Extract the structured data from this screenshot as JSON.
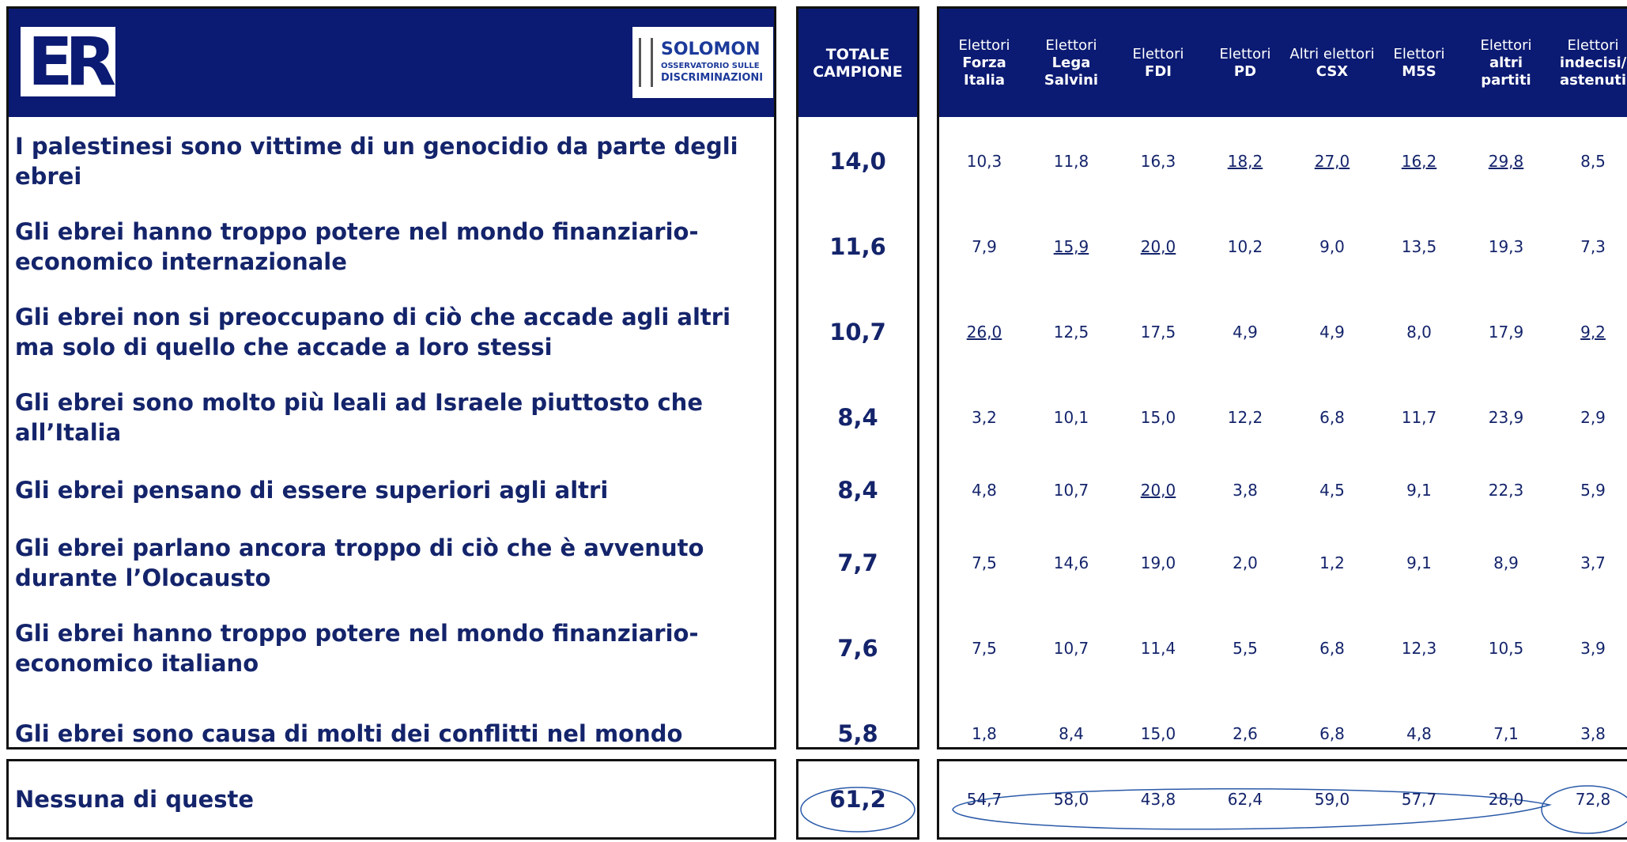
{
  "header": {
    "logo_left": "ER",
    "logo_right": {
      "name": "SOLOMON",
      "line1": "OSSERVATORIO SULLE",
      "line2": "DISCRIMINAZIONI"
    },
    "total_label": "TOTALE CAMPIONE",
    "parties": [
      {
        "line1": "Elettori",
        "bold": "Forza Italia"
      },
      {
        "line1": "Elettori",
        "bold": "Lega Salvini"
      },
      {
        "line1": "Elettori",
        "bold": "FDI"
      },
      {
        "line1": "Elettori",
        "bold": "PD"
      },
      {
        "line1": "Altri elettori",
        "bold": "CSX"
      },
      {
        "line1": "Elettori",
        "bold": "M5S"
      },
      {
        "line1": "Elettori",
        "bold": "altri partiti"
      },
      {
        "line1": "Elettori",
        "bold": "indecisi/ astenuti"
      }
    ]
  },
  "table": {
    "rows": [
      {
        "statement": "I palestinesi sono vittime di un genocidio da parte degli ebrei",
        "total": "14,0",
        "values": [
          "10,3",
          "11,8",
          "16,3",
          "18,2",
          "27,0",
          "16,2",
          "29,8",
          "8,5"
        ],
        "underlined": [
          3,
          4,
          5,
          6
        ]
      },
      {
        "statement": "Gli ebrei hanno troppo potere nel mondo finanziario-economico internazionale",
        "total": "11,6",
        "values": [
          "7,9",
          "15,9",
          "20,0",
          "10,2",
          "9,0",
          "13,5",
          "19,3",
          "7,3"
        ],
        "underlined": [
          1,
          2
        ]
      },
      {
        "statement": "Gli ebrei non si preoccupano di ciò che accade agli altri ma solo di quello che accade a loro stessi",
        "total": "10,7",
        "values": [
          "26,0",
          "12,5",
          "17,5",
          "4,9",
          "4,9",
          "8,0",
          "17,9",
          "9,2"
        ],
        "underlined": [
          0,
          7
        ]
      },
      {
        "statement": "Gli ebrei sono molto più leali ad Israele piuttosto che all’Italia",
        "total": "8,4",
        "values": [
          "3,2",
          "10,1",
          "15,0",
          "12,2",
          "6,8",
          "11,7",
          "23,9",
          "2,9"
        ],
        "underlined": []
      },
      {
        "statement": "Gli ebrei pensano di essere superiori agli altri",
        "total": "8,4",
        "values": [
          "4,8",
          "10,7",
          "20,0",
          "3,8",
          "4,5",
          "9,1",
          "22,3",
          "5,9"
        ],
        "underlined": [
          2
        ]
      },
      {
        "statement": "Gli ebrei parlano ancora troppo di ciò che è avvenuto durante l’Olocausto",
        "total": "7,7",
        "values": [
          "7,5",
          "14,6",
          "19,0",
          "2,0",
          "1,2",
          "9,1",
          "8,9",
          "3,7"
        ],
        "underlined": []
      },
      {
        "statement": "Gli ebrei hanno troppo potere nel mondo finanziario-economico italiano",
        "total": "7,6",
        "values": [
          "7,5",
          "10,7",
          "11,4",
          "5,5",
          "6,8",
          "12,3",
          "10,5",
          "3,9"
        ],
        "underlined": []
      },
      {
        "statement": "Gli ebrei sono causa di molti dei conflitti nel mondo",
        "total": "5,8",
        "values": [
          "1,8",
          "8,4",
          "15,0",
          "2,6",
          "6,8",
          "4,8",
          "7,1",
          "3,8"
        ],
        "underlined": []
      }
    ],
    "footer": {
      "statement": "Nessuna di queste",
      "total": "61,2",
      "values": [
        "54,7",
        "58,0",
        "43,8",
        "62,4",
        "59,0",
        "57,7",
        "28,0",
        "72,8"
      ]
    }
  }
}
